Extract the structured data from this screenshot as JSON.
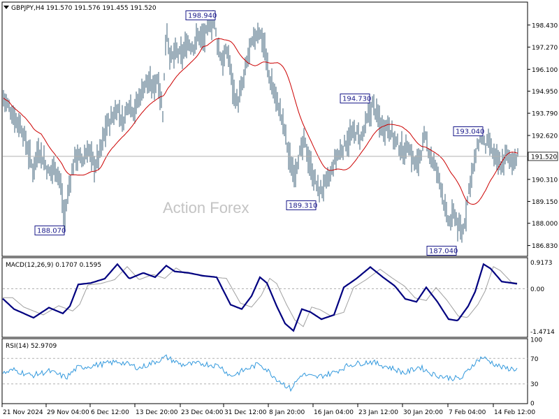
{
  "chart_data": [
    {
      "type": "ohlc",
      "title": "GBPJPY,H4  191.570 191.576 191.455 191.520",
      "symbol": "GBPJPY,H4",
      "quote": {
        "open": 191.57,
        "high": 191.576,
        "low": 191.455,
        "close": 191.52
      },
      "watermark": "Action Forex",
      "ylim": [
        186.3,
        199.6
      ],
      "y_ticks": [
        "198.430",
        "197.270",
        "196.100",
        "194.950",
        "193.790",
        "192.620",
        "191.520",
        "190.310",
        "189.150",
        "188.000",
        "186.830"
      ],
      "current_price": 191.52,
      "current_price_label": "191.520",
      "x_ticks": [
        "21 Nov 2024",
        "29 Nov 04:00",
        "6 Dec 12:00",
        "13 Dec 20:00",
        "23 Dec 04:00",
        "31 Dec 12:00",
        "8 Jan 20:00",
        "16 Jan 04:00",
        "23 Jan 12:00",
        "30 Jan 20:00",
        "7 Feb 04:00",
        "14 Feb 12:00"
      ],
      "annotations": [
        {
          "text": "198.940",
          "value": 198.94,
          "position": "above"
        },
        {
          "text": "188.070",
          "value": 188.07,
          "position": "below"
        },
        {
          "text": "189.310",
          "value": 189.31,
          "position": "below"
        },
        {
          "text": "194.730",
          "value": 194.73,
          "position": "above"
        },
        {
          "text": "187.040",
          "value": 187.04,
          "position": "below"
        },
        {
          "text": "193.040",
          "value": 193.04,
          "position": "above"
        }
      ],
      "series": [
        {
          "name": "price",
          "color": "#3d6078"
        },
        {
          "name": "moving average",
          "color": "#cc0000"
        }
      ]
    },
    {
      "type": "line",
      "title": "MACD(12,26,9) 0.1707 0.1595",
      "ylim": [
        -1.65,
        1.05
      ],
      "y_ticks": [
        "0.9173",
        "0.00",
        "-1.4714"
      ],
      "series": [
        {
          "name": "MACD",
          "color": "#000080"
        },
        {
          "name": "signal",
          "color": "#a0a0a0"
        }
      ]
    },
    {
      "type": "line",
      "title": "RSI(14) 52.9709",
      "ylim": [
        0,
        100
      ],
      "y_ticks": [
        "100",
        "70",
        "30",
        "0"
      ],
      "levels": [
        70,
        30
      ],
      "series": [
        {
          "name": "RSI",
          "color": "#3399dd"
        }
      ]
    }
  ]
}
